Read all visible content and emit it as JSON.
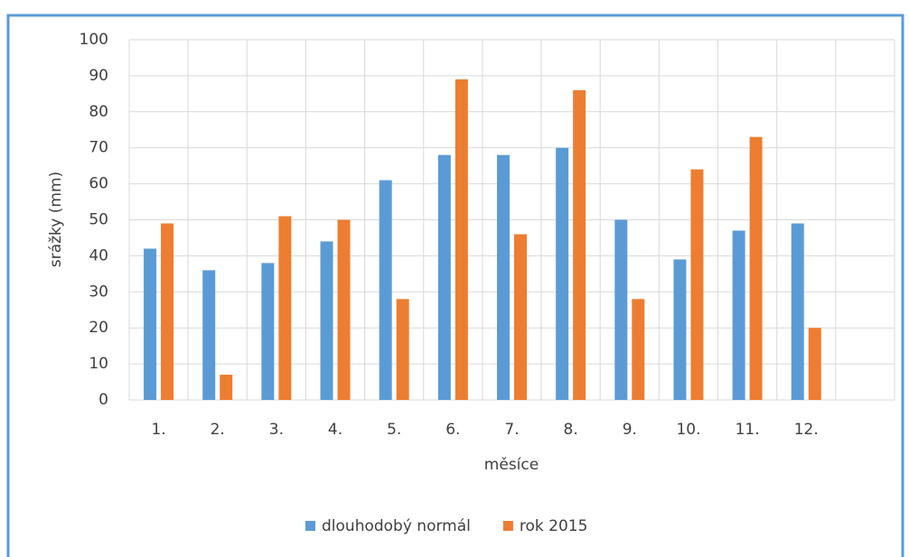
{
  "chart_data": {
    "type": "bar",
    "x_label": "měsíce",
    "y_label": "srážky (mm)",
    "categories": [
      "1.",
      "2.",
      "3.",
      "4.",
      "5.",
      "6.",
      "7.",
      "8.",
      "9.",
      "10.",
      "11.",
      "12.",
      null
    ],
    "series": [
      {
        "name": "dlouhodobý normál",
        "color": "#5b9bd5",
        "values": [
          42,
          36,
          38,
          44,
          61,
          68,
          68,
          70,
          50,
          39,
          47,
          49,
          null
        ]
      },
      {
        "name": "rok 2015",
        "color": "#ed7d31",
        "values": [
          49,
          7,
          51,
          50,
          28,
          89,
          46,
          86,
          28,
          64,
          73,
          20,
          null
        ]
      }
    ],
    "ylim": [
      0,
      100
    ],
    "yticks": [
      0,
      10,
      20,
      30,
      40,
      50,
      60,
      70,
      80,
      90,
      100
    ],
    "grid": true,
    "legend": "bottom"
  }
}
